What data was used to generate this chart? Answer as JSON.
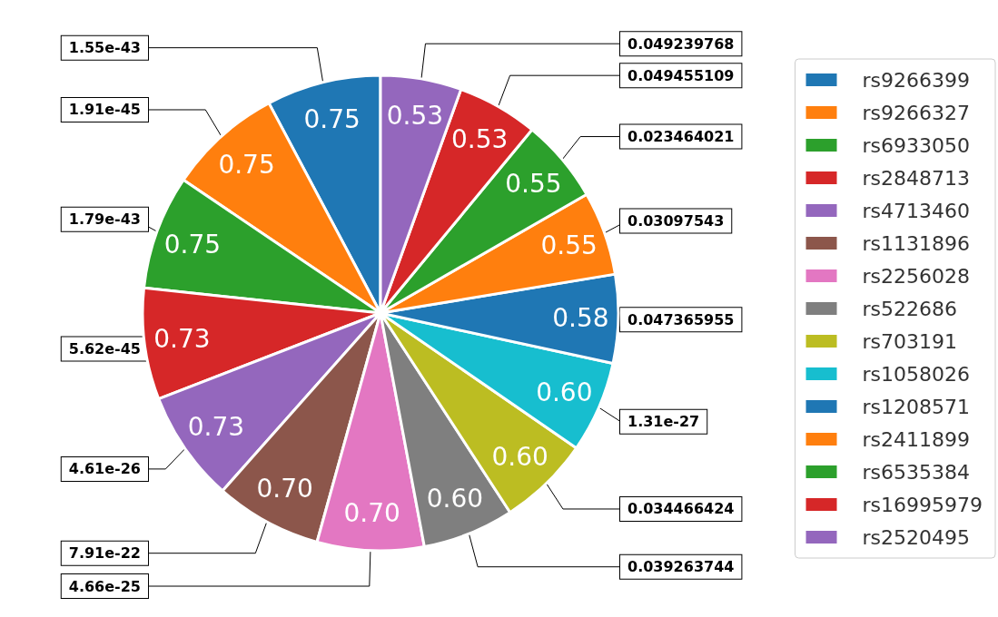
{
  "chart_data": {
    "type": "pie",
    "categories": [
      "rs9266399",
      "rs9266327",
      "rs6933050",
      "rs2848713",
      "rs4713460",
      "rs1131896",
      "rs2256028",
      "rs522686",
      "rs703191",
      "rs1058026",
      "rs1208571",
      "rs2411899",
      "rs6535384",
      "rs16995979",
      "rs2520495"
    ],
    "values": [
      0.75,
      0.75,
      0.75,
      0.73,
      0.73,
      0.7,
      0.7,
      0.6,
      0.6,
      0.6,
      0.58,
      0.55,
      0.55,
      0.53,
      0.53
    ],
    "value_labels": [
      "0.75",
      "0.75",
      "0.75",
      "0.73",
      "0.73",
      "0.70",
      "0.70",
      "0.60",
      "0.60",
      "0.60",
      "0.58",
      "0.55",
      "0.55",
      "0.53",
      "0.53"
    ],
    "colors": [
      "#1f77b4",
      "#ff7f0e",
      "#2ca02c",
      "#d62728",
      "#9467bd",
      "#8c564b",
      "#e377c2",
      "#7f7f7f",
      "#bcbd22",
      "#17becf",
      "#1f77b4",
      "#ff7f0e",
      "#2ca02c",
      "#d62728",
      "#9467bd"
    ],
    "legend": "right",
    "annotations": [
      {
        "text": "1.55e-43",
        "x": "rs9266399"
      },
      {
        "text": "1.91e-45",
        "x": "rs9266327"
      },
      {
        "text": "1.79e-43",
        "x": "rs6933050"
      },
      {
        "text": "5.62e-45",
        "x": "rs2848713"
      },
      {
        "text": "4.61e-26",
        "x": "rs4713460"
      },
      {
        "text": "7.91e-22",
        "x": "rs1131896"
      },
      {
        "text": "4.66e-25",
        "x": "rs2256028"
      },
      {
        "text": "0.039263744",
        "x": "rs522686"
      },
      {
        "text": "0.034466424",
        "x": "rs703191"
      },
      {
        "text": "1.31e-27",
        "x": "rs1058026"
      },
      {
        "text": "0.047365955",
        "x": "rs1208571"
      },
      {
        "text": "0.03097543",
        "x": "rs2411899"
      },
      {
        "text": "0.023464021",
        "x": "rs6535384"
      },
      {
        "text": "0.049455109",
        "x": "rs16995979"
      },
      {
        "text": "0.049239768",
        "x": "rs2520495"
      }
    ]
  }
}
